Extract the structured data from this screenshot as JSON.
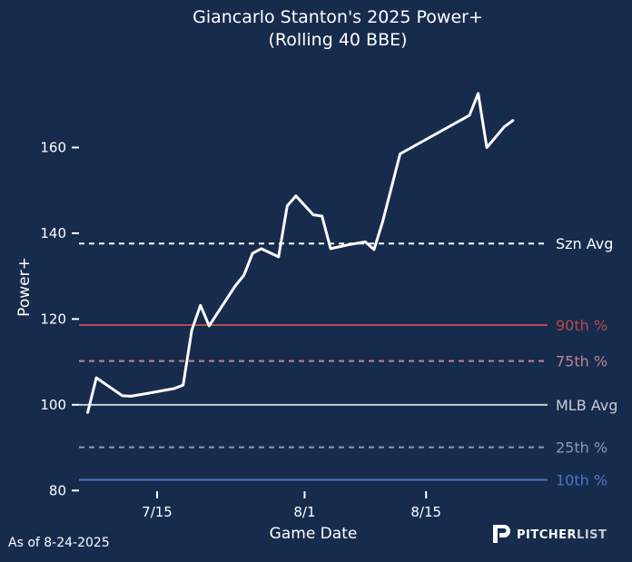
{
  "chart_data": {
    "type": "line",
    "title": "Giancarlo Stanton's 2025 Power+",
    "subtitle": "(Rolling 40 BBE)",
    "xlabel": "Game Date",
    "ylabel": "Power+",
    "x_ticks": [
      {
        "label": "7/15",
        "value": "2025-07-15"
      },
      {
        "label": "8/1",
        "value": "2025-08-01"
      },
      {
        "label": "8/15",
        "value": "2025-08-15"
      }
    ],
    "y_ticks": [
      80,
      100,
      120,
      140,
      160
    ],
    "xlim": [
      "2025-07-06",
      "2025-08-29"
    ],
    "ylim": [
      79,
      180
    ],
    "grid": false,
    "series": [
      {
        "color": "#ffffff",
        "points": [
          {
            "x": "2025-07-07",
            "y": 98.2
          },
          {
            "x": "2025-07-08",
            "y": 106.3
          },
          {
            "x": "2025-07-10",
            "y": 103.5
          },
          {
            "x": "2025-07-11",
            "y": 102.1
          },
          {
            "x": "2025-07-12",
            "y": 102.0
          },
          {
            "x": "2025-07-14",
            "y": 102.7
          },
          {
            "x": "2025-07-17",
            "y": 103.8
          },
          {
            "x": "2025-07-18",
            "y": 104.6
          },
          {
            "x": "2025-07-19",
            "y": 117.4
          },
          {
            "x": "2025-07-20",
            "y": 123.2
          },
          {
            "x": "2025-07-21",
            "y": 118.4
          },
          {
            "x": "2025-07-24",
            "y": 127.7
          },
          {
            "x": "2025-07-25",
            "y": 130.2
          },
          {
            "x": "2025-07-26",
            "y": 135.3
          },
          {
            "x": "2025-07-27",
            "y": 136.4
          },
          {
            "x": "2025-07-29",
            "y": 134.5
          },
          {
            "x": "2025-07-30",
            "y": 146.4
          },
          {
            "x": "2025-07-31",
            "y": 148.7
          },
          {
            "x": "2025-08-02",
            "y": 144.3
          },
          {
            "x": "2025-08-03",
            "y": 144.0
          },
          {
            "x": "2025-08-04",
            "y": 136.4
          },
          {
            "x": "2025-08-06",
            "y": 137.3
          },
          {
            "x": "2025-08-08",
            "y": 138.0
          },
          {
            "x": "2025-08-09",
            "y": 136.2
          },
          {
            "x": "2025-08-10",
            "y": 142.7
          },
          {
            "x": "2025-08-12",
            "y": 158.5
          },
          {
            "x": "2025-08-20",
            "y": 167.5
          },
          {
            "x": "2025-08-21",
            "y": 172.6
          },
          {
            "x": "2025-08-22",
            "y": 160.0
          },
          {
            "x": "2025-08-24",
            "y": 164.8
          },
          {
            "x": "2025-08-25",
            "y": 166.3
          }
        ]
      }
    ],
    "reference_lines": [
      {
        "label": "Szn Avg",
        "value": 137.6,
        "color": "#ffffff",
        "style": "dashed"
      },
      {
        "label": "90th %",
        "value": 118.6,
        "color": "#b84a4e",
        "style": "solid"
      },
      {
        "label": "75th %",
        "value": 110.2,
        "color": "#b98a90",
        "style": "dashed"
      },
      {
        "label": "MLB Avg",
        "value": 100,
        "color": "#c9ccd6",
        "style": "solid"
      },
      {
        "label": "25th %",
        "value": 90.1,
        "color": "#8a9ab9",
        "style": "dashed"
      },
      {
        "label": "10th %",
        "value": 82.5,
        "color": "#4a78c2",
        "style": "solid"
      }
    ]
  },
  "footer": {
    "as_of": "As of 8-24-2025",
    "brand_primary": "PITCHER",
    "brand_secondary": "LIST",
    "brand_icon": "pitcherlist-logo-icon"
  }
}
